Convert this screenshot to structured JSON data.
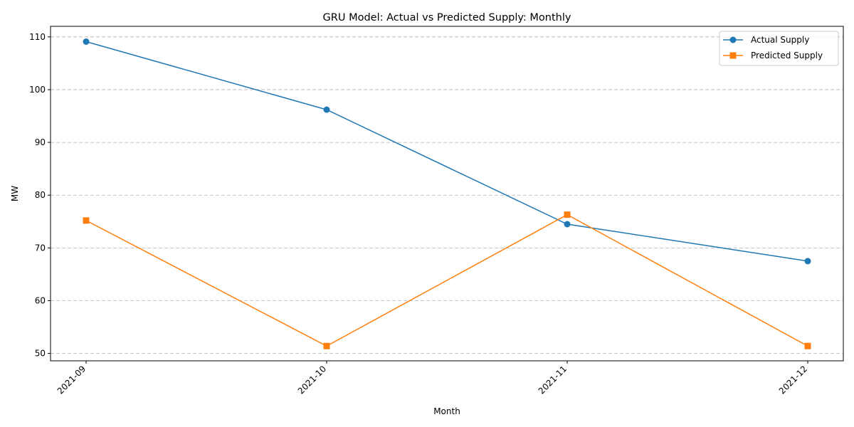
{
  "chart_data": {
    "type": "line",
    "title": "GRU Model: Actual vs Predicted Supply: Monthly",
    "xlabel": "Month",
    "ylabel": "MW",
    "categories": [
      "2021-09",
      "2021-10",
      "2021-11",
      "2021-12"
    ],
    "ylim": [
      48.6,
      112
    ],
    "yticks": [
      50,
      60,
      70,
      80,
      90,
      100,
      110
    ],
    "grid": "horizontal dashed",
    "legend_position": "top-right",
    "series": [
      {
        "name": "Actual Supply",
        "color": "#1f77b4",
        "marker": "circle",
        "values": [
          109.1,
          96.2,
          74.5,
          67.5
        ]
      },
      {
        "name": "Predicted Supply",
        "color": "#ff7f0e",
        "marker": "square",
        "values": [
          75.2,
          51.4,
          76.3,
          51.4
        ]
      }
    ]
  }
}
